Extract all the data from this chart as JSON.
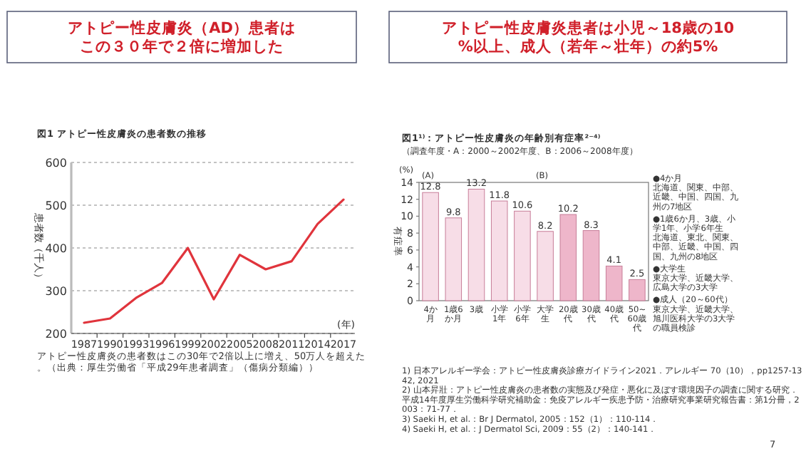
{
  "chart_data": [
    {
      "type": "line",
      "title": "アトピー性皮膚炎（AD）患者はこの３０年で２倍に増加した",
      "subtitle": "図1 アトピー性皮膚炎の患者数の推移",
      "xlabel": "(年)",
      "ylabel": "患者数（千人）",
      "categories": [
        "1987",
        "1990",
        "1993",
        "1996",
        "1999",
        "2002",
        "2005",
        "2008",
        "2011",
        "2014",
        "2017"
      ],
      "series": [
        {
          "color": "#e0343c",
          "values": [
            225,
            235,
            283,
            318,
            400,
            280,
            384,
            350,
            369,
            456,
            513
          ]
        }
      ],
      "ylim": [
        200,
        600
      ],
      "yticks": [
        200,
        300,
        400,
        500,
        600
      ],
      "grid": "y",
      "marker": "none",
      "line_style": "solid",
      "annotations": [
        "アトピー性皮膚炎の患者数はこの30年で2倍以上に増え、50万人を超えた。（出典：厚生労働省「平成29年患者調査」（傷病分類編））"
      ]
    },
    {
      "type": "bar",
      "title": "アトピー性皮膚炎患者は小児～18歳の10%以上、成人（若年～壮年）の約5%",
      "subtitle": "図1¹⁾：アトピー性皮膚炎の年齢別有症率²⁻⁴⁾",
      "ylabel": "有症率",
      "categories": [
        "4か月",
        "1歳6か月",
        "3歳",
        "小学1年",
        "小学6年",
        "大学生",
        "20歳代",
        "30歳代",
        "40歳代",
        "50~60歳代"
      ],
      "values": [
        12.8,
        9.8,
        13.2,
        11.8,
        10.6,
        8.2,
        10.2,
        8.3,
        4.1,
        2.5
      ],
      "colors": [
        "#f7dde7",
        "#f7dde7",
        "#f7dde7",
        "#f7dde7",
        "#f7dde7",
        "#f7dde7",
        "#eeb6ca",
        "#eeb6ca",
        "#eeb6ca",
        "#eeb6ca"
      ],
      "ylim": [
        0,
        14
      ],
      "yticks": [
        0,
        2,
        4,
        6,
        8,
        10,
        12,
        14
      ],
      "data_labels": true,
      "annotations": [
        "（調査年度・A：2000～2002年度、B：2006～2008年度）",
        "(%)",
        "(A)",
        "(B)",
        "●4か月",
        "北海道、関東、中部、近畿、中国、四国、九州の7地区",
        "●1歳6か月、3歳、小学1年、小学6年生",
        "北海道、東北、関東、中部、近畿、中国、四国、九州の8地区",
        "●大学生",
        "東京大学、近畿大学、広島大学の3大学",
        "●成人（20～60代）",
        "東京大学、近畿大学、旭川医科大学の3大学の職員検診",
        "1) 日本アレルギー学会：アトピー性皮膚炎診療ガイドライン2021．アレルギー 70（10），pp1257-1342, 2021",
        "2) 山本昇壯：アトピー性皮膚炎の患者数の実態及び発症・悪化に及ぼす環境因子の調査に関する研究．平成14年度厚生労働科学研究補助金：免疫アレルギー疾患予防・治療研究事業研究報告書：第1分冊，2003：71-77．",
        "3) Saeki H, et al.：Br J Dermatol, 2005：152（1）：110-114．",
        "4) Saeki H, et al.：J Dermatol Sci, 2009：55（2）：140-141．",
        "7"
      ]
    }
  ]
}
